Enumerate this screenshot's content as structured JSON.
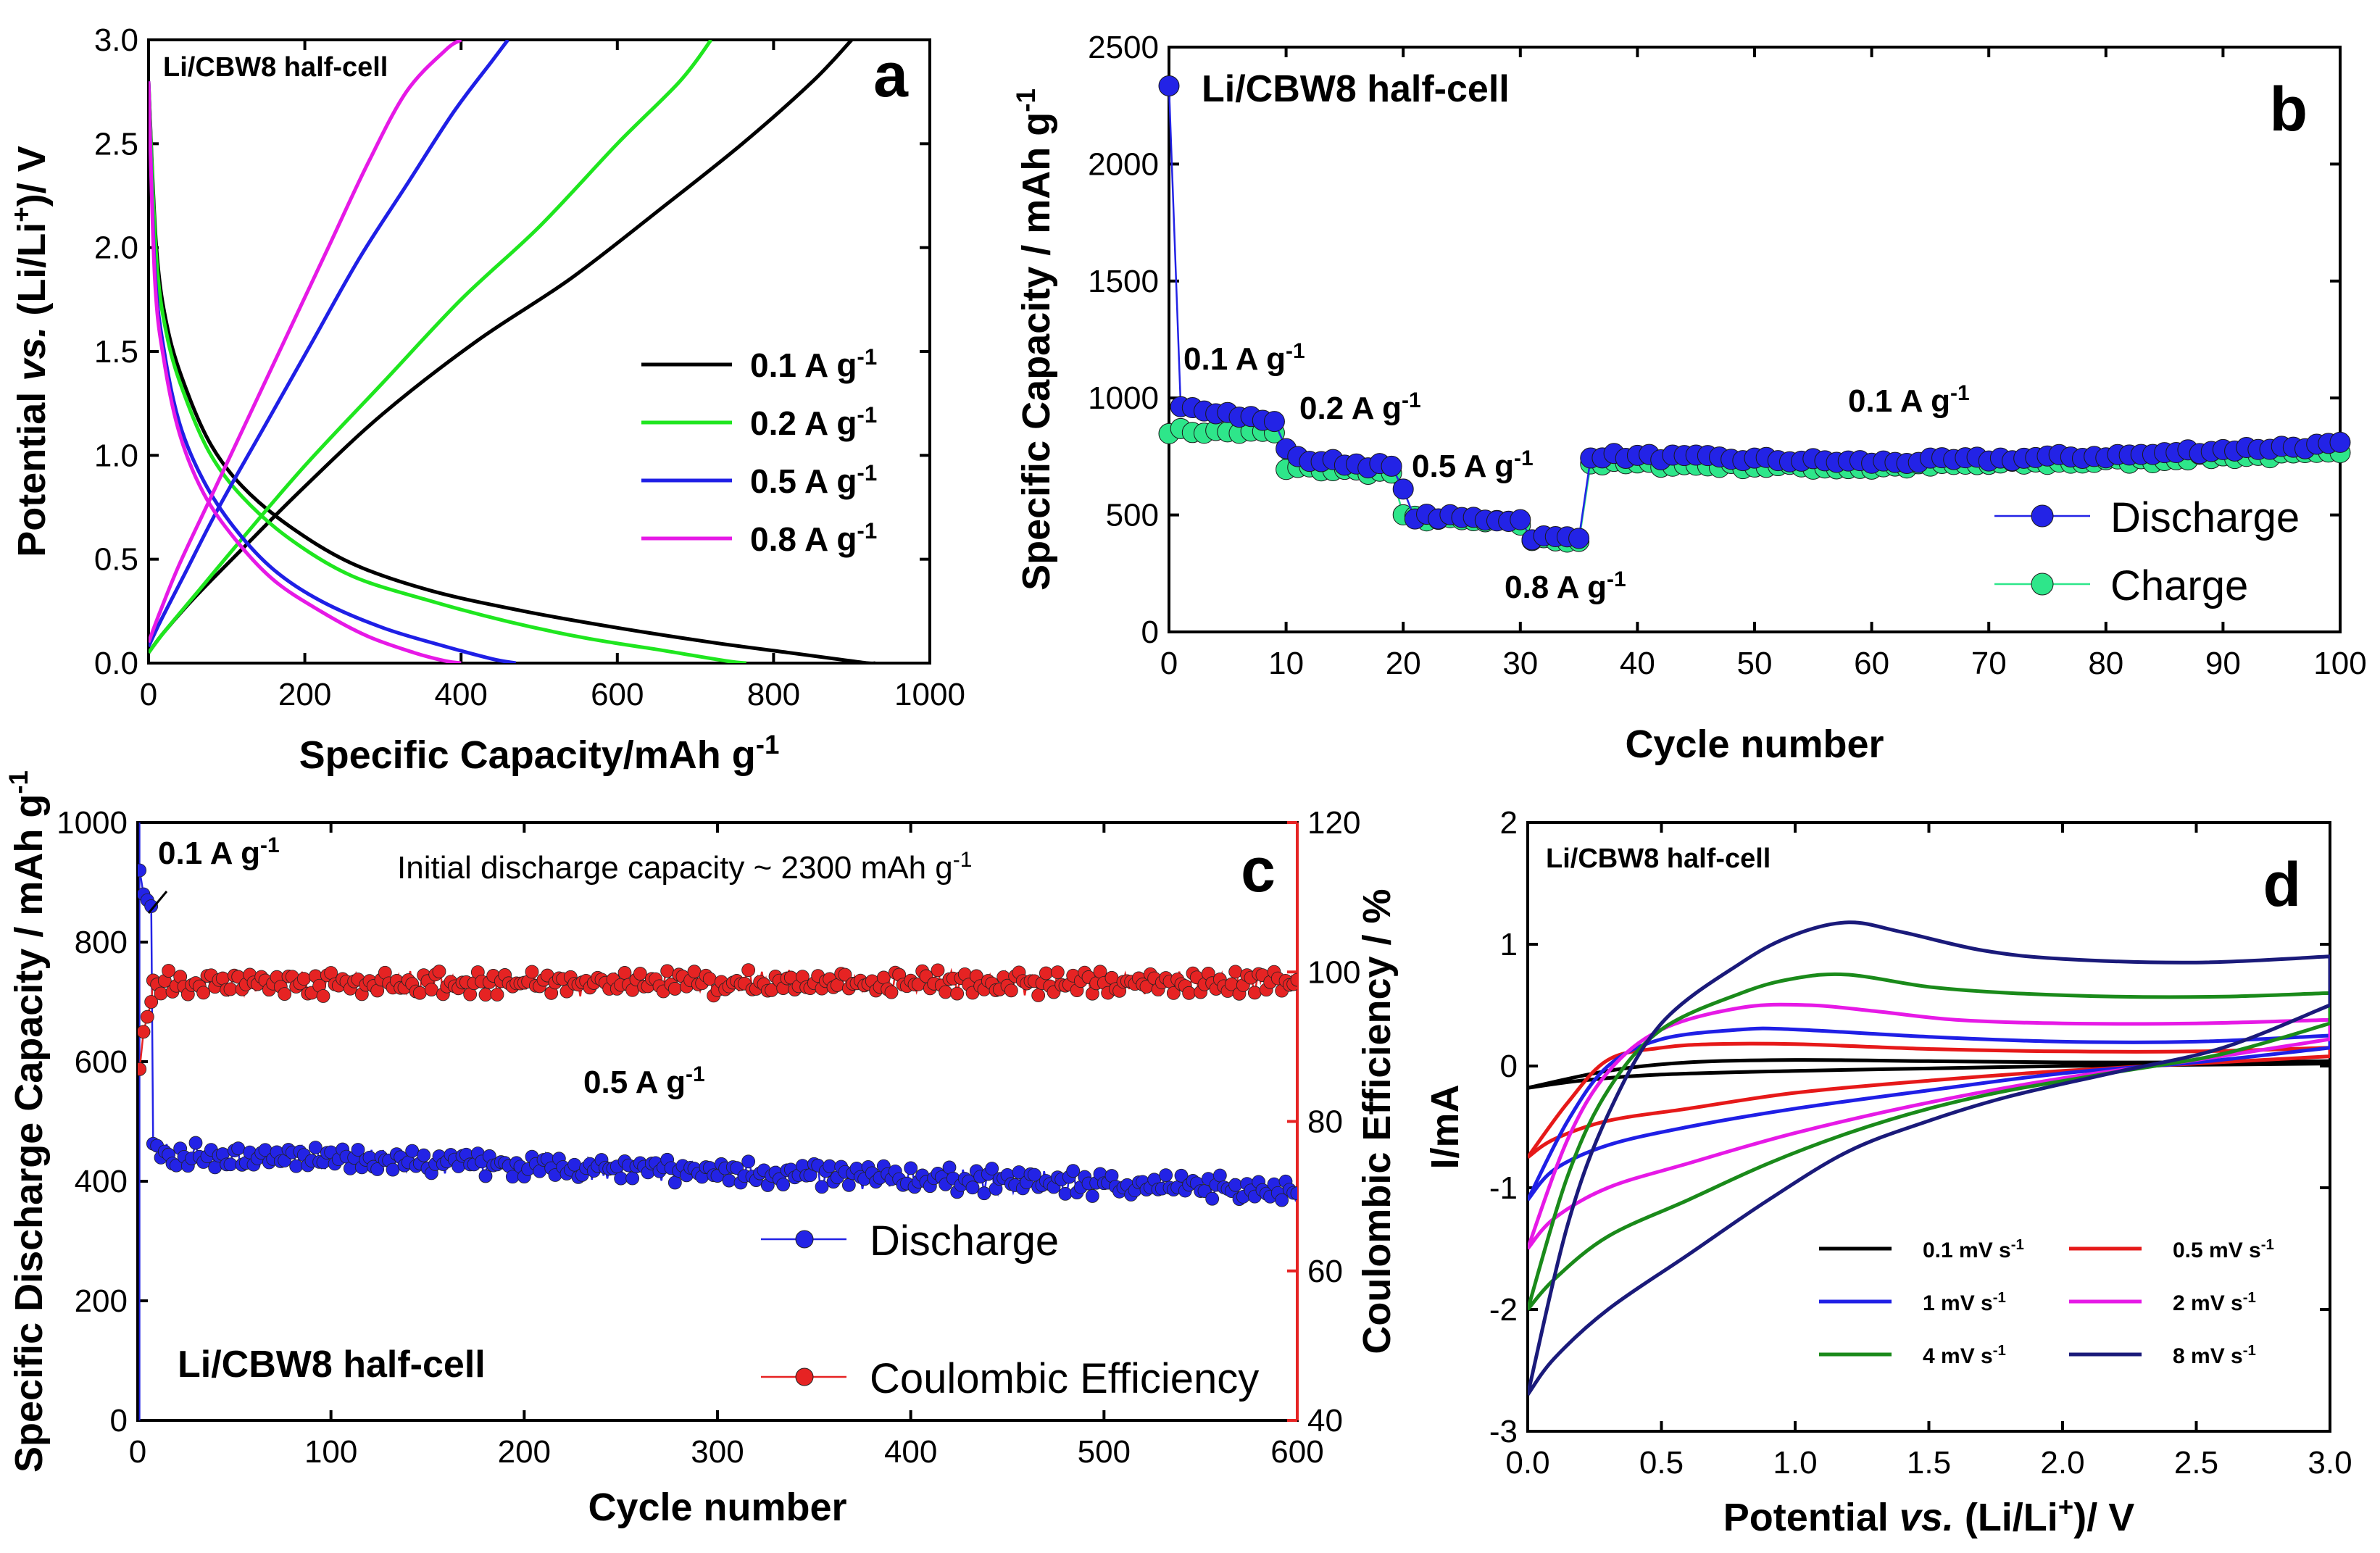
{
  "chart_data": [
    {
      "id": "a",
      "type": "line",
      "panel_label": "a",
      "title": "Li/CBW8 half-cell",
      "xlabel": "Specific Capacity/mAh g-1",
      "xlabel_main": "Specific Capacity/mAh g",
      "xlabel_sup": "-1",
      "ylabel": "Potential vs. (Li/Li+)/ V",
      "ylabel_parts": [
        "Potential ",
        "vs.",
        " (Li/Li",
        "+",
        ")/ V"
      ],
      "xlim": [
        0,
        1000
      ],
      "ylim": [
        0,
        3.0
      ],
      "xticks": [
        "0",
        "200",
        "400",
        "600",
        "800",
        "1000"
      ],
      "yticks": [
        "0.0",
        "0.5",
        "1.0",
        "1.5",
        "2.0",
        "2.5",
        "3.0"
      ],
      "legend_position": "center-right",
      "series": [
        {
          "name": "0.1 A g-1",
          "label": "0.1 A g",
          "sup": "-1",
          "color": "#000000",
          "discharge": {
            "x": [
              0,
              10,
              25,
              50,
              80,
              120,
              180,
              260,
              360,
              480,
              600,
              720,
              820,
              880,
              920,
              930
            ],
            "y": [
              2.8,
              2.0,
              1.6,
              1.3,
              1.05,
              0.85,
              0.66,
              0.48,
              0.35,
              0.25,
              0.17,
              0.1,
              0.05,
              0.02,
              0.0,
              0.0
            ]
          },
          "charge": {
            "x": [
              0,
              20,
              60,
              120,
              200,
              300,
              420,
              540,
              660,
              760,
              850,
              900
            ],
            "y": [
              0.05,
              0.15,
              0.32,
              0.55,
              0.85,
              1.2,
              1.55,
              1.85,
              2.2,
              2.5,
              2.8,
              3.0
            ]
          }
        },
        {
          "name": "0.2 A g-1",
          "label": "0.2 A g",
          "sup": "-1",
          "color": "#1fe61f",
          "discharge": {
            "x": [
              0,
              10,
              25,
              50,
              80,
              120,
              180,
              260,
              360,
              460,
              560,
              660,
              740,
              765
            ],
            "y": [
              2.8,
              1.95,
              1.55,
              1.25,
              1.0,
              0.8,
              0.6,
              0.42,
              0.3,
              0.2,
              0.12,
              0.06,
              0.01,
              0.0
            ]
          },
          "charge": {
            "x": [
              0,
              20,
              60,
              120,
              200,
              300,
              400,
              500,
              600,
              680,
              720
            ],
            "y": [
              0.05,
              0.15,
              0.33,
              0.6,
              0.95,
              1.35,
              1.75,
              2.1,
              2.5,
              2.8,
              3.0
            ]
          }
        },
        {
          "name": "0.5 A g-1",
          "label": "0.5 A g",
          "sup": "-1",
          "color": "#1f1fe6",
          "discharge": {
            "x": [
              0,
              8,
              20,
              40,
              70,
              110,
              160,
              220,
              300,
              380,
              440,
              470
            ],
            "y": [
              2.8,
              1.9,
              1.5,
              1.15,
              0.88,
              0.65,
              0.45,
              0.3,
              0.17,
              0.08,
              0.02,
              0.0
            ]
          },
          "charge": {
            "x": [
              0,
              15,
              45,
              90,
              150,
              210,
              270,
              330,
              390,
              440,
              460
            ],
            "y": [
              0.08,
              0.2,
              0.42,
              0.75,
              1.15,
              1.55,
              1.95,
              2.3,
              2.65,
              2.9,
              3.0
            ]
          }
        },
        {
          "name": "0.8 A g-1",
          "label": "0.8 A g",
          "sup": "-1",
          "color": "#e619e6",
          "discharge": {
            "x": [
              0,
              8,
              20,
              40,
              70,
              110,
              160,
              220,
              280,
              340,
              380,
              400
            ],
            "y": [
              2.8,
              1.85,
              1.45,
              1.1,
              0.82,
              0.6,
              0.4,
              0.25,
              0.13,
              0.05,
              0.01,
              0.0
            ]
          },
          "charge": {
            "x": [
              0,
              15,
              40,
              80,
              130,
              180,
              230,
              280,
              330,
              380,
              400
            ],
            "y": [
              0.1,
              0.25,
              0.48,
              0.8,
              1.2,
              1.6,
              2.0,
              2.4,
              2.75,
              2.95,
              3.0
            ]
          }
        }
      ]
    },
    {
      "id": "b",
      "type": "scatter",
      "panel_label": "b",
      "title": "Li/CBW8 half-cell",
      "xlabel": "Cycle number",
      "ylabel": "Specific Capacity / mAh g-1",
      "ylabel_main": "Specific Capacity / mAh g",
      "ylabel_sup": "-1",
      "xlim": [
        0,
        100
      ],
      "ylim": [
        0,
        2500
      ],
      "xticks": [
        "0",
        "10",
        "20",
        "30",
        "40",
        "50",
        "60",
        "70",
        "80",
        "90",
        "100"
      ],
      "yticks": [
        "0",
        "500",
        "1000",
        "1500",
        "2000",
        "2500"
      ],
      "legend_position": "bottom-right",
      "annotations": [
        {
          "text": "0.1 A g",
          "sup": "-1"
        },
        {
          "text": "0.2 A g",
          "sup": "-1"
        },
        {
          "text": "0.5 A g",
          "sup": "-1"
        },
        {
          "text": "0.8 A g",
          "sup": "-1"
        },
        {
          "text": "0.1 A g",
          "sup": "-1"
        }
      ],
      "series": [
        {
          "name": "Discharge",
          "color": "#2323e6",
          "segments": [
            {
              "start": 0,
              "end": 0,
              "from": 2340,
              "to": 2340
            },
            {
              "start": 1,
              "end": 9,
              "from": 975,
              "to": 895
            },
            {
              "start": 10,
              "end": 10,
              "from": 790,
              "to": 790
            },
            {
              "start": 11,
              "end": 19,
              "from": 740,
              "to": 705
            },
            {
              "start": 20,
              "end": 20,
              "from": 600,
              "to": 600
            },
            {
              "start": 21,
              "end": 30,
              "from": 495,
              "to": 478
            },
            {
              "start": 31,
              "end": 35,
              "from": 405,
              "to": 400
            },
            {
              "start": 36,
              "end": 60,
              "from": 755,
              "to": 725
            },
            {
              "start": 61,
              "end": 85,
              "from": 725,
              "to": 760
            },
            {
              "start": 86,
              "end": 100,
              "from": 770,
              "to": 800
            }
          ]
        },
        {
          "name": "Charge",
          "color": "#2ee68a",
          "segments": [
            {
              "start": 0,
              "end": 9,
              "from": 860,
              "to": 850
            },
            {
              "start": 10,
              "end": 10,
              "from": 690,
              "to": 690
            },
            {
              "start": 11,
              "end": 19,
              "from": 700,
              "to": 680
            },
            {
              "start": 20,
              "end": 30,
              "from": 490,
              "to": 460
            },
            {
              "start": 31,
              "end": 35,
              "from": 395,
              "to": 392
            },
            {
              "start": 36,
              "end": 60,
              "from": 720,
              "to": 700
            },
            {
              "start": 61,
              "end": 85,
              "from": 705,
              "to": 735
            },
            {
              "start": 86,
              "end": 100,
              "from": 745,
              "to": 760
            }
          ]
        }
      ]
    },
    {
      "id": "c",
      "type": "scatter",
      "panel_label": "c",
      "title": "Li/CBW8 half-cell",
      "xlabel": "Cycle number",
      "ylabel": "Specific Discharge Capacity / mAh g-1",
      "ylabel_main": "Specific Discharge Capacity / mAh g",
      "ylabel_sup": "-1",
      "y2label": "Coulombic Efficiency / %",
      "xlim": [
        0,
        600
      ],
      "ylim": [
        0,
        1000
      ],
      "y2lim": [
        40,
        120
      ],
      "xticks": [
        "0",
        "100",
        "200",
        "300",
        "400",
        "500",
        "600"
      ],
      "yticks": [
        "0",
        "200",
        "400",
        "600",
        "800",
        "1000"
      ],
      "y2ticks": [
        "40",
        "60",
        "80",
        "100",
        "120"
      ],
      "note": "Initial discharge capacity ~  2300 mAh g",
      "note_sup": "-1",
      "annotations": [
        {
          "text": "0.1 A g",
          "sup": "-1"
        },
        {
          "text": "0.5 A g",
          "sup": "-1"
        }
      ],
      "legend_position": "bottom-right",
      "series": [
        {
          "name": "Discharge",
          "color": "#2323e6",
          "axis": "left",
          "initial": [
            {
              "x": 1,
              "y": 920
            },
            {
              "x": 3,
              "y": 880
            },
            {
              "x": 5,
              "y": 870
            },
            {
              "x": 7,
              "y": 860
            }
          ],
          "trend": {
            "start": 8,
            "end": 600,
            "from": 445,
            "to": 385,
            "noise": 22
          }
        },
        {
          "name": "Coulombic Efficiency",
          "color": "#e62323",
          "axis": "right",
          "initial": [
            {
              "x": 1,
              "y": 87
            },
            {
              "x": 3,
              "y": 92
            },
            {
              "x": 5,
              "y": 94
            },
            {
              "x": 7,
              "y": 96
            }
          ],
          "trend": {
            "start": 8,
            "end": 600,
            "from": 98.5,
            "to": 98.5,
            "noise": 1.8
          }
        }
      ]
    },
    {
      "id": "d",
      "type": "line",
      "panel_label": "d",
      "title": "Li/CBW8 half-cell",
      "xlabel": "Potential vs. (Li/Li+)/ V",
      "xlabel_parts": [
        "Potential ",
        "vs.",
        " (Li/Li",
        "+",
        ")/ V"
      ],
      "ylabel": "I/mA",
      "xlim": [
        0,
        3.0
      ],
      "ylim": [
        -3,
        2
      ],
      "xticks": [
        "0.0",
        "0.5",
        "1.0",
        "1.5",
        "2.0",
        "2.5",
        "3.0"
      ],
      "yticks": [
        "-3",
        "-2",
        "-1",
        "0",
        "1",
        "2"
      ],
      "legend_position": "bottom-right",
      "series": [
        {
          "name": "0.1 mV s-1",
          "label": "0.1 mV s",
          "sup": "-1",
          "color": "#000000",
          "upper": {
            "x": [
              0,
              0.3,
              0.6,
              1.0,
              1.5,
              2.0,
              2.5,
              3.0
            ],
            "y": [
              -0.18,
              -0.04,
              0.03,
              0.05,
              0.04,
              0.03,
              0.03,
              0.04
            ]
          },
          "lower": {
            "x": [
              3.0,
              2.5,
              2.0,
              1.5,
              1.0,
              0.5,
              0.2,
              0
            ],
            "y": [
              0.02,
              0.01,
              -0.0,
              -0.02,
              -0.04,
              -0.07,
              -0.12,
              -0.18
            ]
          }
        },
        {
          "name": "0.5 mV s-1",
          "label": "0.5 mV s",
          "sup": "-1",
          "color": "#e61919",
          "upper": {
            "x": [
              0,
              0.15,
              0.3,
              0.5,
              0.7,
              1.0,
              1.5,
              2.0,
              2.5,
              3.0
            ],
            "y": [
              -0.75,
              -0.3,
              0.05,
              0.15,
              0.18,
              0.18,
              0.14,
              0.12,
              0.12,
              0.15
            ]
          },
          "lower": {
            "x": [
              3.0,
              2.5,
              2.0,
              1.5,
              1.0,
              0.6,
              0.3,
              0.1,
              0
            ],
            "y": [
              0.08,
              0.02,
              -0.04,
              -0.12,
              -0.22,
              -0.35,
              -0.45,
              -0.6,
              -0.75
            ]
          }
        },
        {
          "name": "1 mV s-1",
          "label": "1 mV s",
          "sup": "-1",
          "color": "#1f1fe6",
          "upper": {
            "x": [
              0,
              0.15,
              0.3,
              0.5,
              0.8,
              1.0,
              1.5,
              2.0,
              2.5,
              3.0
            ],
            "y": [
              -1.1,
              -0.45,
              0.0,
              0.22,
              0.3,
              0.3,
              0.24,
              0.2,
              0.2,
              0.25
            ]
          },
          "lower": {
            "x": [
              3.0,
              2.5,
              2.0,
              1.5,
              1.0,
              0.6,
              0.3,
              0.1,
              0
            ],
            "y": [
              0.15,
              0.03,
              -0.06,
              -0.2,
              -0.35,
              -0.5,
              -0.65,
              -0.85,
              -1.1
            ]
          }
        },
        {
          "name": "2 mV s-1",
          "label": "2 mV s",
          "sup": "-1",
          "color": "#e619e6",
          "upper": {
            "x": [
              0,
              0.15,
              0.3,
              0.5,
              0.8,
              1.05,
              1.3,
              1.6,
              2.0,
              2.5,
              3.0
            ],
            "y": [
              -1.5,
              -0.6,
              -0.05,
              0.3,
              0.48,
              0.5,
              0.45,
              0.38,
              0.35,
              0.35,
              0.38
            ]
          },
          "lower": {
            "x": [
              3.0,
              2.5,
              2.0,
              1.5,
              1.0,
              0.6,
              0.3,
              0.1,
              0
            ],
            "y": [
              0.22,
              0.05,
              -0.1,
              -0.3,
              -0.55,
              -0.8,
              -1.0,
              -1.25,
              -1.5
            ]
          }
        },
        {
          "name": "4 mV s-1",
          "label": "4 mV s",
          "sup": "-1",
          "color": "#1a8a1a",
          "upper": {
            "x": [
              0,
              0.15,
              0.3,
              0.5,
              0.8,
              1.0,
              1.2,
              1.5,
              1.8,
              2.2,
              2.6,
              3.0
            ],
            "y": [
              -2.0,
              -0.9,
              -0.2,
              0.3,
              0.6,
              0.72,
              0.75,
              0.65,
              0.6,
              0.57,
              0.57,
              0.6
            ]
          },
          "lower": {
            "x": [
              3.0,
              2.6,
              2.2,
              1.8,
              1.5,
              1.2,
              0.9,
              0.6,
              0.3,
              0.1,
              0
            ],
            "y": [
              0.35,
              0.1,
              -0.05,
              -0.2,
              -0.35,
              -0.55,
              -0.8,
              -1.1,
              -1.4,
              -1.75,
              -2.0
            ]
          }
        },
        {
          "name": "8 mV s-1",
          "label": "8 mV s",
          "sup": "-1",
          "color": "#1a1a7a",
          "upper": {
            "x": [
              0,
              0.15,
              0.3,
              0.5,
              0.8,
              1.0,
              1.2,
              1.4,
              1.7,
              2.0,
              2.5,
              3.0
            ],
            "y": [
              -2.7,
              -1.3,
              -0.4,
              0.35,
              0.85,
              1.08,
              1.18,
              1.1,
              0.95,
              0.88,
              0.85,
              0.9
            ]
          },
          "lower": {
            "x": [
              3.0,
              2.6,
              2.2,
              1.8,
              1.5,
              1.2,
              0.9,
              0.6,
              0.3,
              0.1,
              0
            ],
            "y": [
              0.5,
              0.15,
              -0.05,
              -0.25,
              -0.45,
              -0.7,
              -1.1,
              -1.55,
              -2.0,
              -2.4,
              -2.7
            ]
          }
        }
      ]
    }
  ]
}
